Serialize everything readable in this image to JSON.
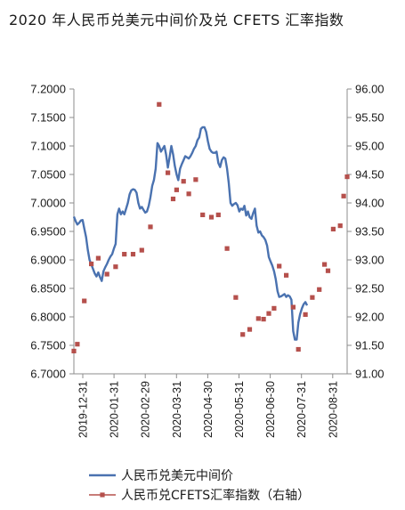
{
  "chart_data": {
    "type": "line",
    "title": "2020 年人民币兑美元中间价及兑 CFETS 汇率指数",
    "categories": [
      "2019-12-31",
      "2020-01-31",
      "2020-02-29",
      "2020-03-31",
      "2020-04-30",
      "2020-05-31",
      "2020-06-30",
      "2020-07-31",
      "2020-08-31"
    ],
    "y_left": {
      "range": [
        6.7,
        7.2
      ],
      "ticks": [
        "6.7000",
        "6.7500",
        "6.8000",
        "6.8500",
        "6.9000",
        "6.9500",
        "7.0000",
        "7.0500",
        "7.1000",
        "7.1500",
        "7.2000"
      ]
    },
    "y_right": {
      "range": [
        91.0,
        96.0
      ],
      "ticks": [
        "91.00",
        "91.50",
        "92.00",
        "92.50",
        "93.00",
        "93.50",
        "94.00",
        "94.50",
        "95.00",
        "95.50",
        "96.00"
      ]
    },
    "grid": false,
    "legend_position": "bottom",
    "series": [
      {
        "name": "人民币兑美元中间价",
        "style": "line",
        "axis": "left",
        "color": "#4a72b0",
        "points": [
          [
            0,
            6.976
          ],
          [
            1,
            6.968
          ],
          [
            2,
            6.962
          ],
          [
            3,
            6.965
          ],
          [
            4,
            6.969
          ],
          [
            5,
            6.97
          ],
          [
            6,
            6.955
          ],
          [
            7,
            6.94
          ],
          [
            8,
            6.918
          ],
          [
            9,
            6.9
          ],
          [
            10,
            6.892
          ],
          [
            11,
            6.884
          ],
          [
            12,
            6.876
          ],
          [
            13,
            6.871
          ],
          [
            14,
            6.878
          ],
          [
            15,
            6.87
          ],
          [
            16,
            6.863
          ],
          [
            17,
            6.88
          ],
          [
            18,
            6.887
          ],
          [
            19,
            6.893
          ],
          [
            20,
            6.9
          ],
          [
            21,
            6.906
          ],
          [
            22,
            6.91
          ],
          [
            23,
            6.92
          ],
          [
            24,
            6.928
          ],
          [
            25,
            6.98
          ],
          [
            26,
            6.99
          ],
          [
            27,
            6.98
          ],
          [
            28,
            6.985
          ],
          [
            29,
            6.98
          ],
          [
            30,
            6.99
          ],
          [
            31,
            7.0
          ],
          [
            32,
            7.015
          ],
          [
            33,
            7.022
          ],
          [
            34,
            7.024
          ],
          [
            35,
            7.023
          ],
          [
            36,
            7.018
          ],
          [
            37,
            7.0
          ],
          [
            38,
            6.99
          ],
          [
            39,
            6.993
          ],
          [
            40,
            6.988
          ],
          [
            41,
            6.983
          ],
          [
            42,
            6.985
          ],
          [
            43,
            6.995
          ],
          [
            44,
            7.01
          ],
          [
            45,
            7.03
          ],
          [
            46,
            7.04
          ],
          [
            47,
            7.06
          ],
          [
            48,
            7.105
          ],
          [
            49,
            7.1
          ],
          [
            50,
            7.09
          ],
          [
            51,
            7.095
          ],
          [
            52,
            7.1
          ],
          [
            53,
            7.085
          ],
          [
            54,
            7.062
          ],
          [
            55,
            7.08
          ],
          [
            56,
            7.1
          ],
          [
            57,
            7.085
          ],
          [
            58,
            7.065
          ],
          [
            59,
            7.05
          ],
          [
            60,
            7.04
          ],
          [
            61,
            7.06
          ],
          [
            62,
            7.068
          ],
          [
            63,
            7.075
          ],
          [
            64,
            7.082
          ],
          [
            65,
            7.08
          ],
          [
            66,
            7.078
          ],
          [
            67,
            7.082
          ],
          [
            68,
            7.088
          ],
          [
            69,
            7.095
          ],
          [
            70,
            7.1
          ],
          [
            71,
            7.11
          ],
          [
            72,
            7.115
          ],
          [
            73,
            7.13
          ],
          [
            74,
            7.133
          ],
          [
            75,
            7.133
          ],
          [
            76,
            7.125
          ],
          [
            77,
            7.108
          ],
          [
            78,
            7.095
          ],
          [
            79,
            7.09
          ],
          [
            80,
            7.088
          ],
          [
            81,
            7.088
          ],
          [
            82,
            7.09
          ],
          [
            83,
            7.07
          ],
          [
            84,
            7.063
          ],
          [
            85,
            7.075
          ],
          [
            86,
            7.08
          ],
          [
            87,
            7.078
          ],
          [
            88,
            7.06
          ],
          [
            89,
            7.035
          ],
          [
            90,
            7.0
          ],
          [
            91,
            6.995
          ],
          [
            92,
            6.998
          ],
          [
            93,
            7.0
          ],
          [
            94,
            6.996
          ],
          [
            95,
            6.985
          ],
          [
            96,
            6.99
          ],
          [
            97,
            6.988
          ],
          [
            98,
            6.995
          ],
          [
            99,
            6.978
          ],
          [
            100,
            6.985
          ],
          [
            101,
            6.975
          ],
          [
            102,
            6.972
          ],
          [
            103,
            6.982
          ],
          [
            104,
            6.99
          ],
          [
            105,
            6.96
          ],
          [
            106,
            6.948
          ],
          [
            107,
            6.95
          ],
          [
            108,
            6.943
          ],
          [
            109,
            6.94
          ],
          [
            110,
            6.935
          ],
          [
            111,
            6.925
          ],
          [
            112,
            6.905
          ],
          [
            113,
            6.897
          ],
          [
            114,
            6.89
          ],
          [
            115,
            6.88
          ],
          [
            116,
            6.866
          ],
          [
            117,
            6.845
          ],
          [
            118,
            6.835
          ],
          [
            119,
            6.836
          ],
          [
            120,
            6.838
          ],
          [
            121,
            6.84
          ],
          [
            122,
            6.835
          ],
          [
            123,
            6.838
          ],
          [
            124,
            6.836
          ],
          [
            125,
            6.83
          ],
          [
            126,
            6.775
          ],
          [
            127,
            6.76
          ],
          [
            128,
            6.76
          ],
          [
            129,
            6.79
          ],
          [
            130,
            6.805
          ],
          [
            131,
            6.815
          ],
          [
            132,
            6.822
          ],
          [
            133,
            6.826
          ],
          [
            134,
            6.82
          ]
        ]
      },
      {
        "name": "人民币兑CFETS汇率指数（右轴）",
        "style": "marker",
        "axis": "right",
        "color": "#b5504c",
        "points": [
          [
            0,
            91.4
          ],
          [
            2,
            91.52
          ],
          [
            6,
            92.28
          ],
          [
            10,
            92.93
          ],
          [
            14,
            93.03
          ],
          [
            19,
            92.75
          ],
          [
            24,
            92.88
          ],
          [
            29,
            93.1
          ],
          [
            34,
            93.1
          ],
          [
            39,
            93.17
          ],
          [
            44,
            93.58
          ],
          [
            49,
            95.73
          ],
          [
            54,
            94.53
          ],
          [
            57,
            94.07
          ],
          [
            59,
            94.23
          ],
          [
            63,
            94.38
          ],
          [
            66,
            94.16
          ],
          [
            70,
            94.41
          ],
          [
            74,
            93.79
          ],
          [
            79,
            93.75
          ],
          [
            83,
            93.79
          ],
          [
            88,
            93.2
          ],
          [
            93,
            92.34
          ],
          [
            97,
            91.69
          ],
          [
            101,
            91.78
          ],
          [
            106,
            91.97
          ],
          [
            109,
            91.96
          ],
          [
            112,
            92.06
          ],
          [
            115,
            92.15
          ],
          [
            118,
            92.89
          ],
          [
            122,
            92.73
          ],
          [
            126,
            92.17
          ],
          [
            129,
            91.43
          ],
          [
            133,
            92.04
          ],
          [
            137,
            92.34
          ],
          [
            141,
            92.48
          ],
          [
            144,
            92.92
          ],
          [
            146,
            92.81
          ],
          [
            149,
            93.54
          ],
          [
            153,
            93.6
          ],
          [
            155,
            94.12
          ],
          [
            157,
            94.46
          ]
        ]
      }
    ]
  }
}
